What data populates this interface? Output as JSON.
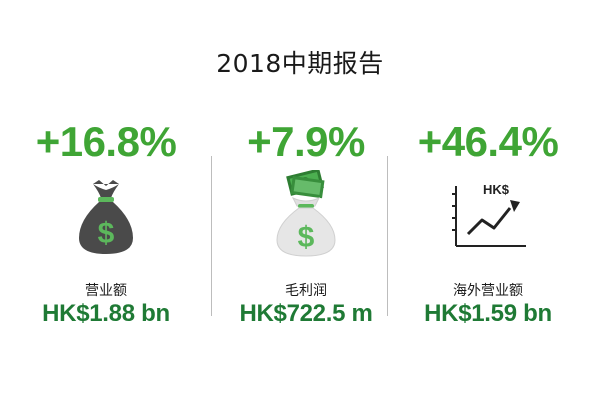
{
  "title": "2018中期报告",
  "metrics": [
    {
      "change": "+16.8%",
      "label": "营业额",
      "value": "HK$1.88 bn",
      "icon": "money-bag-dark-icon"
    },
    {
      "change": "+7.9%",
      "label": "毛利润",
      "value": "HK$722.5 m",
      "icon": "money-bag-cash-icon"
    },
    {
      "change": "+46.4%",
      "label": "海外营业额",
      "value": "HK$1.59 bn",
      "icon": "growth-chart-icon",
      "icon_text": "HK$"
    }
  ],
  "colors": {
    "change": "#3fa535",
    "value": "#1f7a35",
    "title": "#1a1a1a",
    "divider": "#bdbdbd"
  }
}
